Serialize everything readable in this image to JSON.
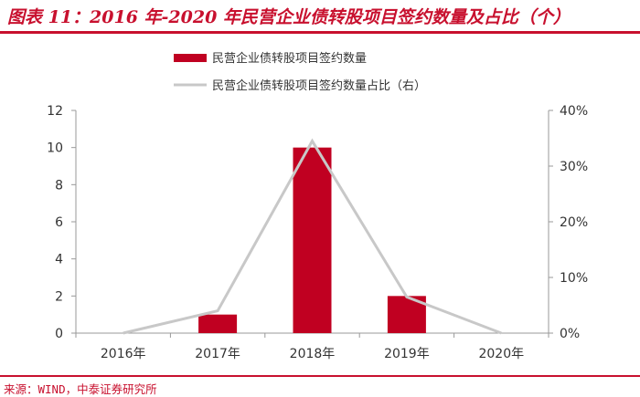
{
  "header": {
    "title": "图表 11：2016 年-2020 年民营企业债转股项目签约数量及占比（个）"
  },
  "footer": {
    "source": "来源：WIND，中泰证券研究所"
  },
  "chart_data": {
    "type": "bar",
    "categories": [
      "2016年",
      "2017年",
      "2018年",
      "2019年",
      "2020年"
    ],
    "series": [
      {
        "name": "民营企业债转股项目签约数量",
        "type": "bar",
        "axis": "left",
        "color": "#c00021",
        "values": [
          0,
          1,
          10,
          2,
          0
        ]
      },
      {
        "name": "民营企业债转股项目签约数量占比（右）",
        "type": "line",
        "axis": "right",
        "color": "#c8c8c8",
        "values": [
          0,
          4,
          34.5,
          6.5,
          0
        ]
      }
    ],
    "ylim": [
      0,
      12
    ],
    "y_ticks": [
      "0",
      "2",
      "4",
      "6",
      "8",
      "10",
      "12"
    ],
    "y2lim": [
      0,
      40
    ],
    "y2_ticks": [
      "0%",
      "10%",
      "20%",
      "30%",
      "40%"
    ],
    "legend_position": "top-center",
    "grid": false
  }
}
